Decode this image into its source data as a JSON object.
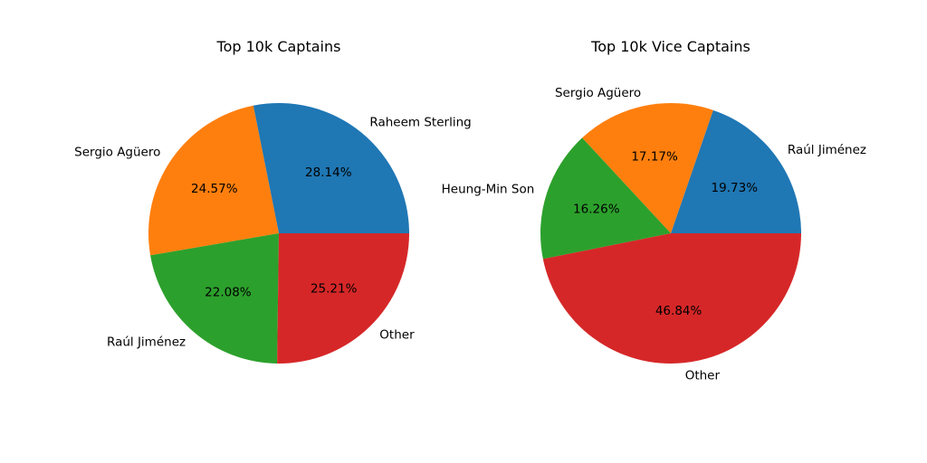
{
  "chart_data": [
    {
      "type": "pie",
      "title": "Top 10k Captains",
      "categories": [
        "Raheem Sterling",
        "Sergio Agüero",
        "Raúl Jiménez",
        "Other"
      ],
      "values": [
        28.14,
        24.57,
        22.08,
        25.21
      ],
      "value_labels": [
        "28.14%",
        "24.57%",
        "22.08%",
        "25.21%"
      ],
      "colors": [
        "#1f77b4",
        "#ff7f0e",
        "#2ca02c",
        "#d62728"
      ]
    },
    {
      "type": "pie",
      "title": "Top 10k Vice Captains",
      "categories": [
        "Raúl Jiménez",
        "Sergio Agüero",
        "Heung-Min Son",
        "Other"
      ],
      "values": [
        19.73,
        17.17,
        16.26,
        46.84
      ],
      "value_labels": [
        "19.73%",
        "17.17%",
        "16.26%",
        "46.84%"
      ],
      "colors": [
        "#1f77b4",
        "#ff7f0e",
        "#2ca02c",
        "#d62728"
      ]
    }
  ]
}
